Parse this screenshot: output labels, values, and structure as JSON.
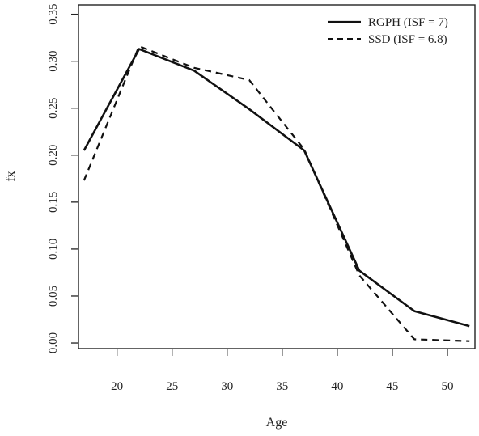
{
  "chart_data": {
    "type": "line",
    "xlabel": "Age",
    "ylabel": "fx",
    "xlim": [
      16.5,
      52.5
    ],
    "ylim": [
      -0.006,
      0.36
    ],
    "x_ticks": [
      20,
      25,
      30,
      35,
      40,
      45,
      50
    ],
    "y_ticks": [
      0.0,
      0.05,
      0.1,
      0.15,
      0.2,
      0.25,
      0.3,
      0.35
    ],
    "y_tick_labels": [
      "0.00",
      "0.05",
      "0.10",
      "0.15",
      "0.20",
      "0.25",
      "0.30",
      "0.35"
    ],
    "grid": false,
    "legend_position": "top-right",
    "series": [
      {
        "name": "RGPH (ISF = 7)",
        "style": "solid",
        "color": "#111111",
        "x": [
          17,
          22,
          27,
          32,
          37,
          42,
          47,
          52
        ],
        "values": [
          0.205,
          0.313,
          0.29,
          0.249,
          0.205,
          0.077,
          0.034,
          0.018
        ]
      },
      {
        "name": "SSD (ISF = 6.8)",
        "style": "dashed",
        "color": "#111111",
        "x": [
          17,
          22,
          27,
          32,
          37,
          42,
          47,
          52
        ],
        "values": [
          0.173,
          0.316,
          0.293,
          0.28,
          0.206,
          0.072,
          0.004,
          0.002
        ]
      }
    ]
  }
}
